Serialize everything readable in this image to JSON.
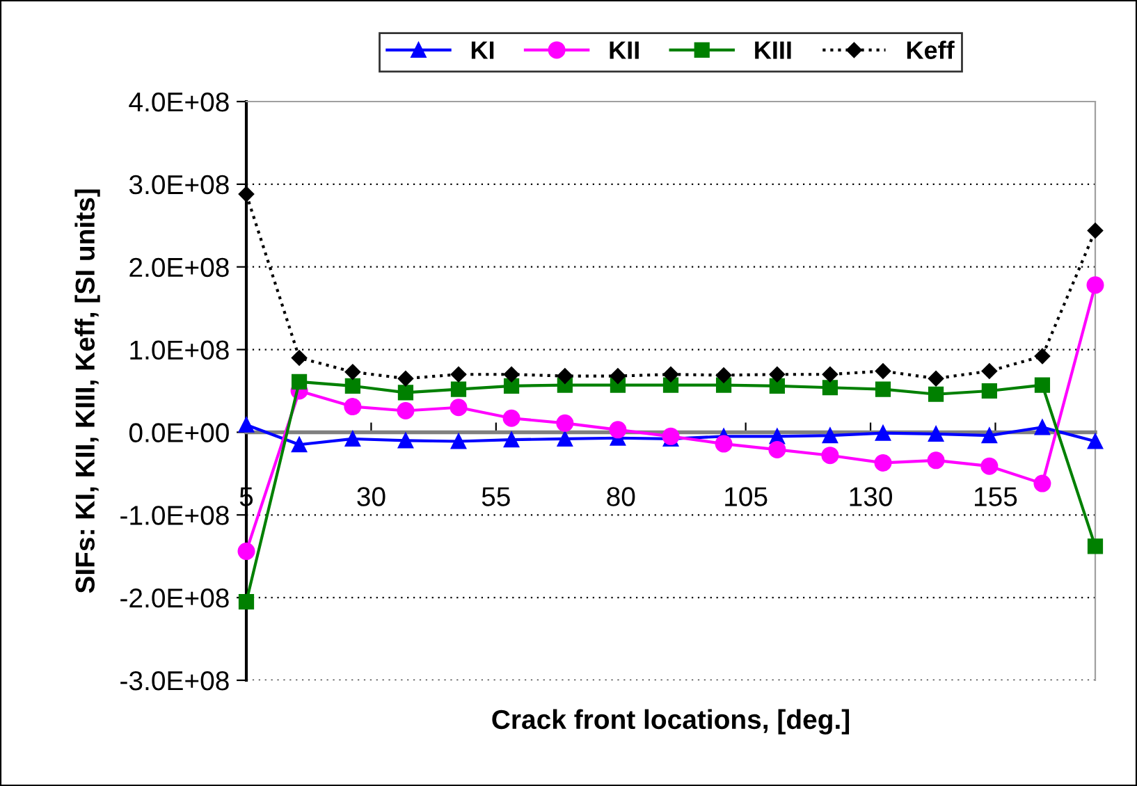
{
  "chart_data": {
    "type": "line",
    "xlabel": "Crack front locations, [deg.]",
    "ylabel": "SIFs: KI, KII, KIII, Keff, [SI units]",
    "x": [
      5,
      15.6,
      26.3,
      36.9,
      47.5,
      58.1,
      68.8,
      79.4,
      90,
      100.6,
      111.3,
      121.9,
      132.5,
      143.1,
      153.8,
      164.4,
      175
    ],
    "xlim": [
      5,
      175
    ],
    "xticks": [
      5,
      30,
      55,
      80,
      105,
      130,
      155
    ],
    "ylim": [
      -300000000,
      400000000
    ],
    "yticks": [
      {
        "value": -300000000,
        "label": "-3.0E+08"
      },
      {
        "value": -200000000,
        "label": "-2.0E+08"
      },
      {
        "value": -100000000,
        "label": "-1.0E+08"
      },
      {
        "value": 0,
        "label": "0.0E+00"
      },
      {
        "value": 100000000,
        "label": "1.0E+08"
      },
      {
        "value": 200000000,
        "label": "2.0E+08"
      },
      {
        "value": 300000000,
        "label": "3.0E+08"
      },
      {
        "value": 400000000,
        "label": "4.0E+08"
      }
    ],
    "grid": "y",
    "legend": "top",
    "series": [
      {
        "name": "KI",
        "color": "#0000ff",
        "marker": "triangle",
        "line_style": "solid",
        "values": [
          9000000,
          -15000000,
          -8000000,
          -10000000,
          -11000000,
          -9000000,
          -8000000,
          -7000000,
          -8000000,
          -5000000,
          -5000000,
          -4000000,
          -1000000,
          -2000000,
          -4000000,
          6000000,
          -11000000
        ]
      },
      {
        "name": "KII",
        "color": "#ff00ff",
        "marker": "circle",
        "line_style": "solid",
        "values": [
          -144000000,
          50000000,
          31000000,
          26000000,
          30000000,
          17000000,
          11000000,
          3000000,
          -5000000,
          -14000000,
          -21000000,
          -28000000,
          -37000000,
          -34000000,
          -41000000,
          -62000000,
          178000000
        ]
      },
      {
        "name": "KIII",
        "color": "#008000",
        "marker": "square",
        "line_style": "solid",
        "values": [
          -205000000,
          61000000,
          56000000,
          48000000,
          52000000,
          56000000,
          57000000,
          57000000,
          57000000,
          57000000,
          56000000,
          54000000,
          52000000,
          46000000,
          50000000,
          57000000,
          -138000000
        ]
      },
      {
        "name": "Keff",
        "color": "#000000",
        "marker": "diamond",
        "line_style": "dotted",
        "values": [
          288000000,
          90000000,
          73000000,
          65000000,
          70000000,
          70000000,
          68000000,
          68000000,
          70000000,
          69000000,
          70000000,
          70000000,
          74000000,
          65000000,
          74000000,
          92000000,
          244000000
        ]
      }
    ]
  }
}
